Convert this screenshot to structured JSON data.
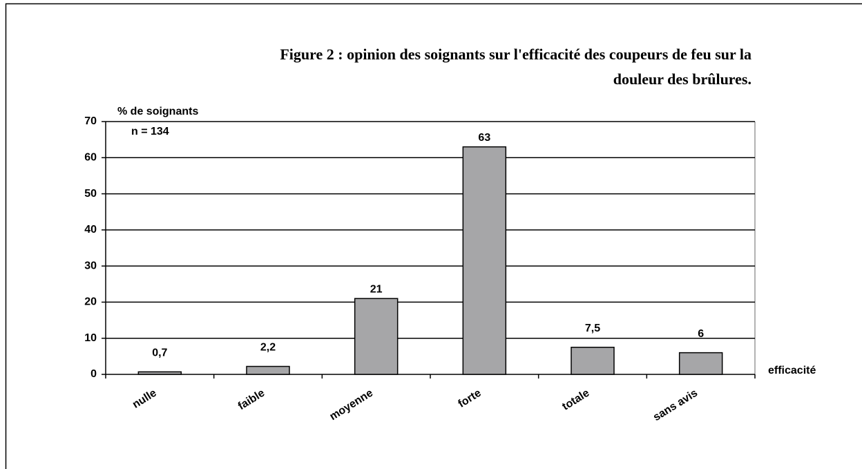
{
  "chart_data": {
    "type": "bar",
    "title": [
      "Figure 2 : opinion des soignants sur l'efficacité des coupeurs de feu sur la",
      "douleur des brûlures."
    ],
    "y_label": "% de soignants",
    "annotation": "n = 134",
    "x_label": "efficacité",
    "categories": [
      "nulle",
      "faible",
      "moyenne",
      "forte",
      "totale",
      "sans avis"
    ],
    "values": [
      0.7,
      2.2,
      21,
      63,
      7.5,
      6
    ],
    "value_labels": [
      "0,7",
      "2,2",
      "21",
      "63",
      "7,5",
      "6"
    ],
    "color": "#a6a6a8",
    "ylim": [
      0,
      70
    ],
    "yticks": [
      0,
      10,
      20,
      30,
      40,
      50,
      60,
      70
    ],
    "grid": true
  }
}
